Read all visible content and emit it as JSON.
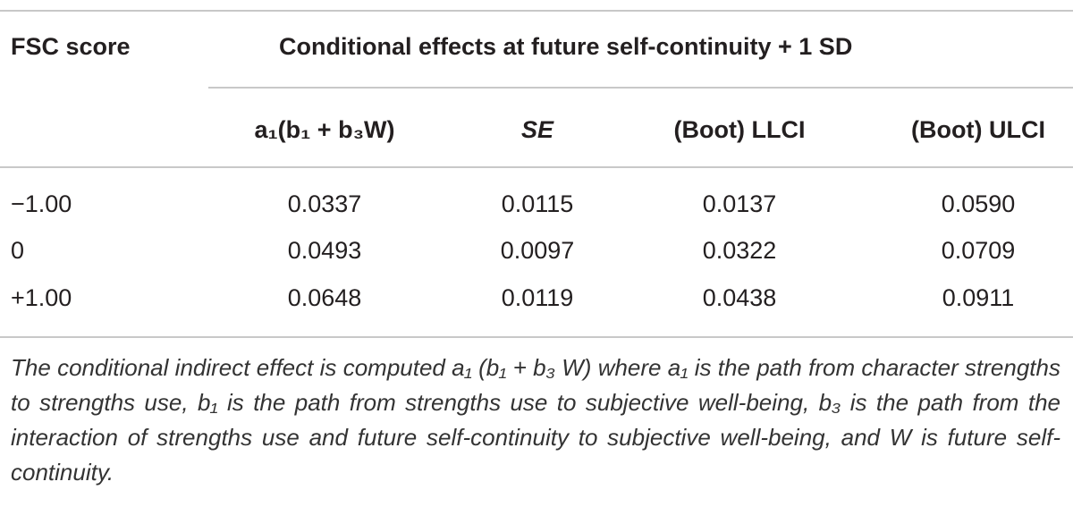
{
  "table": {
    "header": {
      "row_label": "FSC score",
      "group": "Conditional effects at future self-continuity + 1 SD",
      "columns": [
        "a₁(b₁ + b₃W)",
        "SE",
        "(Boot) LLCI",
        "(Boot) ULCI"
      ]
    },
    "rows": [
      [
        "−1.00",
        "0.0337",
        "0.0115",
        "0.0137",
        "0.0590"
      ],
      [
        "0",
        "0.0493",
        "0.0097",
        "0.0322",
        "0.0709"
      ],
      [
        "+1.00",
        "0.0648",
        "0.0119",
        "0.0438",
        "0.0911"
      ]
    ]
  },
  "footnote": "The conditional indirect effect is computed a₁ (b₁ + b₃ W) where a₁ is the path from character strengths to strengths use, b₁ is the path from strengths use to subjective well-being, b₃ is the path from the interaction of strengths use and future self-continuity to subjective well-being, and W is future self-continuity."
}
